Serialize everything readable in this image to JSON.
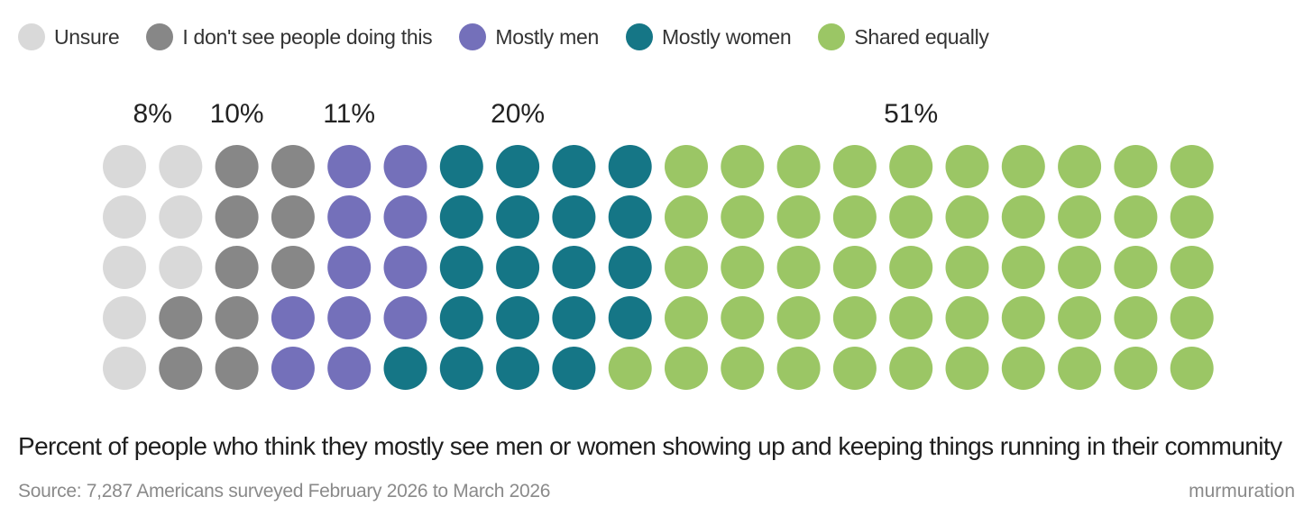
{
  "chart_data": {
    "type": "waffle",
    "grid": {
      "rows": 5,
      "columns": 20,
      "fill_order": "column-major"
    },
    "title": "Percent of people who think they mostly see men or women showing up and keeping things running in their community",
    "source": "Source: 7,287 Americans surveyed February 2026 to March 2026",
    "brand": "murmuration",
    "legend_position": "top-left",
    "categories": [
      {
        "name": "Unsure",
        "label": "8%",
        "value": 8,
        "color": "#d9d9d9"
      },
      {
        "name": "I don't see people doing this",
        "label": "10%",
        "value": 10,
        "color": "#878787"
      },
      {
        "name": "Mostly men",
        "label": "11%",
        "value": 11,
        "color": "#7470ba"
      },
      {
        "name": "Mostly women",
        "label": "20%",
        "value": 20,
        "color": "#157686"
      },
      {
        "name": "Shared equally",
        "label": "51%",
        "value": 51,
        "color": "#9bc665"
      }
    ]
  }
}
